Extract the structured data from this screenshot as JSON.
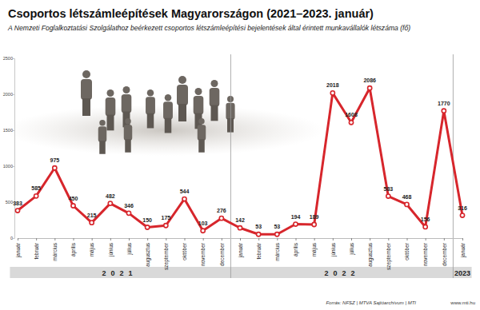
{
  "chart_data": {
    "type": "line",
    "title": "Csoportos létszámleépítések Magyarországon (2021–2023. január)",
    "subtitle": "A Nemzeti Foglalkoztatási Szolgálathoz beérkezett csoportos létszámleépítési bejelentések által érintett munkavállalók létszáma (fő)",
    "categories": [
      "január",
      "február",
      "március",
      "április",
      "május",
      "június",
      "július",
      "augusztus",
      "szeptember",
      "október",
      "november",
      "december",
      "január",
      "február",
      "március",
      "április",
      "május",
      "június",
      "július",
      "augusztus",
      "szeptember",
      "október",
      "november",
      "december",
      "január"
    ],
    "values": [
      383,
      585,
      975,
      450,
      215,
      482,
      346,
      150,
      175,
      544,
      103,
      276,
      142,
      53,
      53,
      194,
      189,
      2018,
      1608,
      2086,
      583,
      468,
      156,
      1770,
      316
    ],
    "year_groups": [
      {
        "label": "2021",
        "span": 12
      },
      {
        "label": "2022",
        "span": 12
      },
      {
        "label": "2023",
        "span": 1
      }
    ],
    "color": "#d7262c",
    "marker": "circle",
    "data_labels": true,
    "grid": false,
    "ylim": [
      0,
      2500
    ],
    "yticks": [
      0,
      500,
      1000,
      1500,
      2000,
      2500
    ],
    "annotations": [
      "Forrás: NFSZ | MTVA Sajtóarchívum | MTI",
      "www.mti.hu"
    ]
  }
}
